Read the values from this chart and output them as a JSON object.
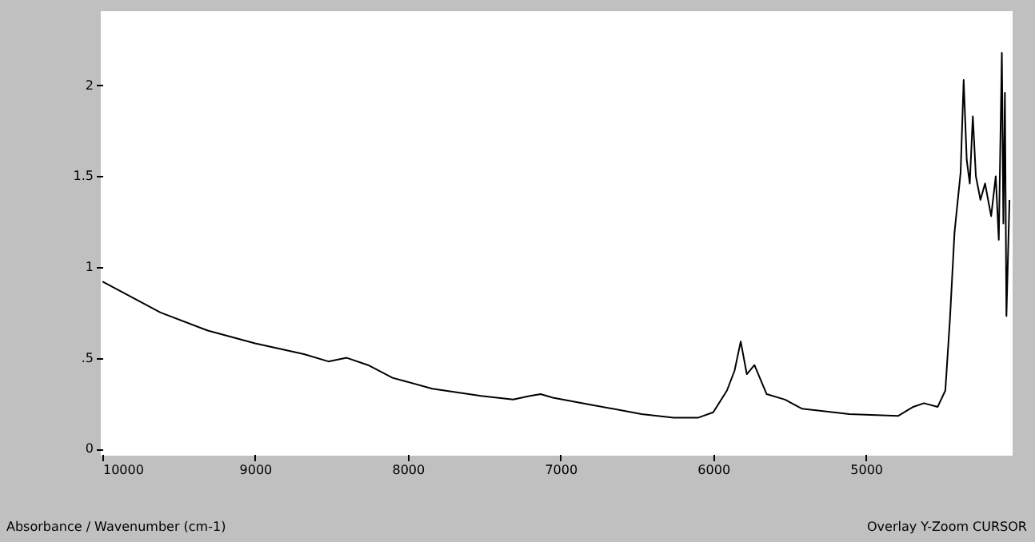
{
  "chart_data": {
    "type": "line",
    "x": [
      10000,
      9620,
      9310,
      9000,
      8680,
      8520,
      8400,
      8260,
      8100,
      7840,
      7520,
      7310,
      7200,
      7130,
      7050,
      6790,
      6470,
      6260,
      6100,
      6000,
      5910,
      5860,
      5820,
      5780,
      5730,
      5650,
      5530,
      5420,
      5110,
      4790,
      4690,
      4620,
      4530,
      4480,
      4450,
      4420,
      4380,
      4360,
      4340,
      4320,
      4300,
      4280,
      4250,
      4220,
      4180,
      4150,
      4130,
      4110,
      4100,
      4090,
      4080,
      4060
    ],
    "series": [
      {
        "color": "#000000",
        "values": [
          0.92,
          0.75,
          0.65,
          0.58,
          0.52,
          0.48,
          0.5,
          0.46,
          0.39,
          0.33,
          0.29,
          0.27,
          0.29,
          0.3,
          0.28,
          0.24,
          0.19,
          0.17,
          0.17,
          0.2,
          0.32,
          0.43,
          0.59,
          0.41,
          0.46,
          0.3,
          0.27,
          0.22,
          0.19,
          0.18,
          0.23,
          0.25,
          0.23,
          0.32,
          0.71,
          1.19,
          1.52,
          2.03,
          1.59,
          1.46,
          1.83,
          1.5,
          1.37,
          1.46,
          1.28,
          1.5,
          1.15,
          2.18,
          1.24,
          1.96,
          0.73,
          1.37
        ]
      }
    ],
    "xlim": [
      10000,
      4050
    ],
    "xticks": [
      10000,
      9000,
      8000,
      7000,
      6000,
      5000
    ],
    "ylim": [
      -0.03,
      2.4
    ],
    "yticks": [
      0,
      {
        "value": 0.5,
        "label": ".5"
      },
      1,
      1.5,
      2
    ],
    "grid": false,
    "marker": "none",
    "line_style": "solid",
    "annotations": [
      "Absorbance / Wavenumber (cm-1)",
      "Overlay Y-Zoom CURSOR"
    ]
  }
}
